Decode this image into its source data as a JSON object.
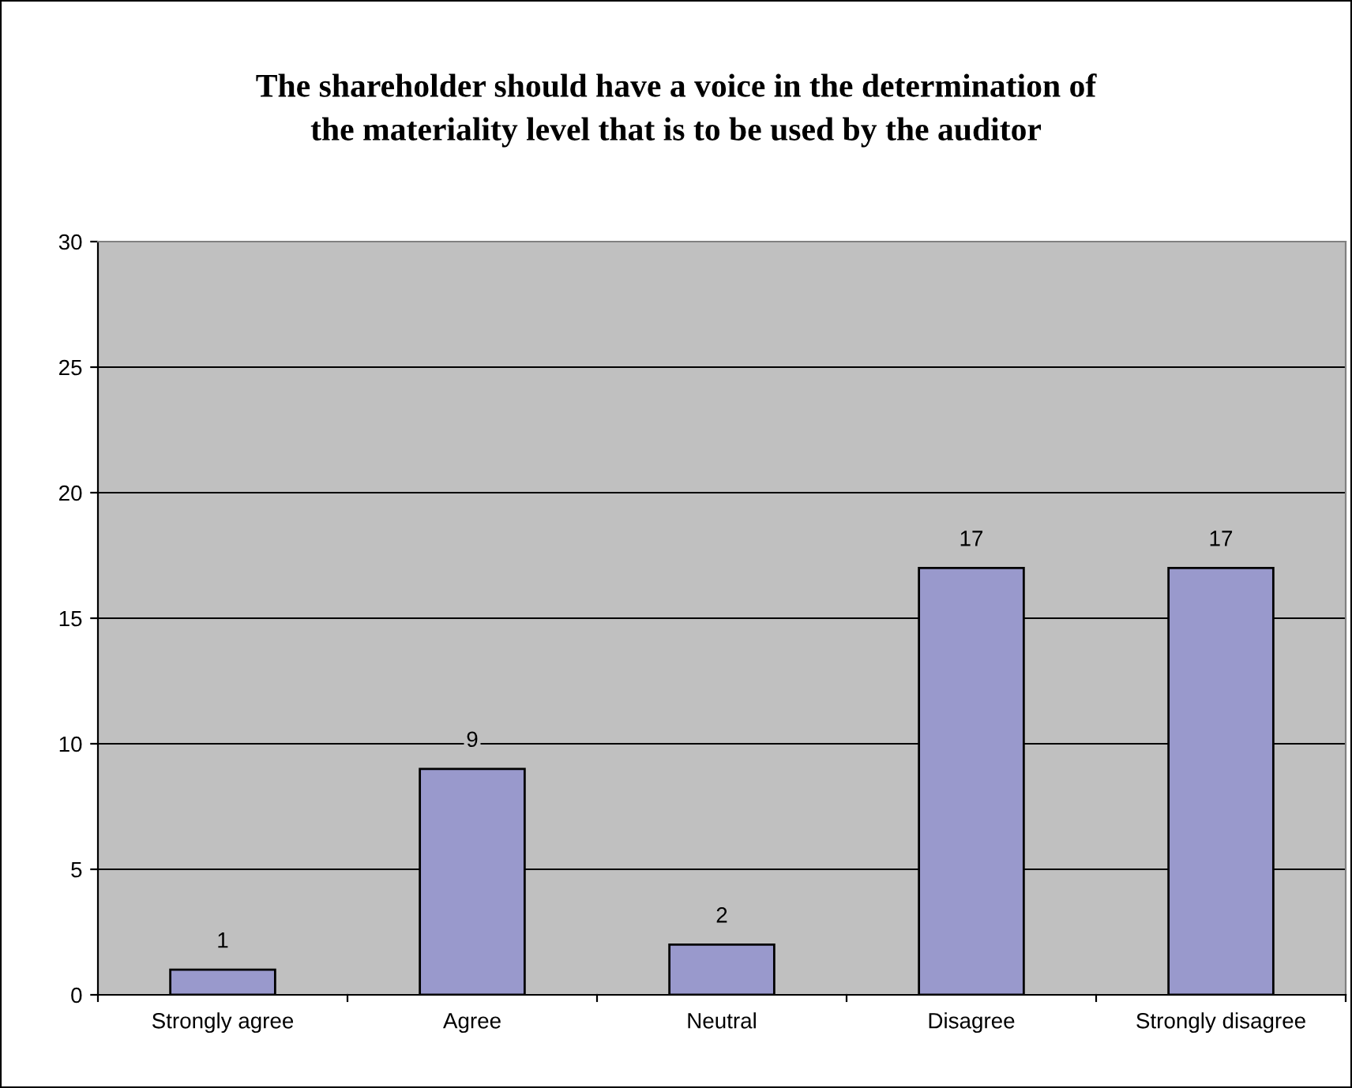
{
  "chart_data": {
    "type": "bar",
    "title": "The shareholder should have a voice in the determination of\nthe materiality level that is to be used by the auditor",
    "categories": [
      "Strongly agree",
      "Agree",
      "Neutral",
      "Disagree",
      "Strongly disagree"
    ],
    "values": [
      1,
      9,
      2,
      17,
      17
    ],
    "color": "#9999cc",
    "ylim": [
      0,
      30
    ],
    "yticks": [
      0,
      5,
      10,
      15,
      20,
      25,
      30
    ],
    "grid": "y",
    "data_labels": true
  }
}
